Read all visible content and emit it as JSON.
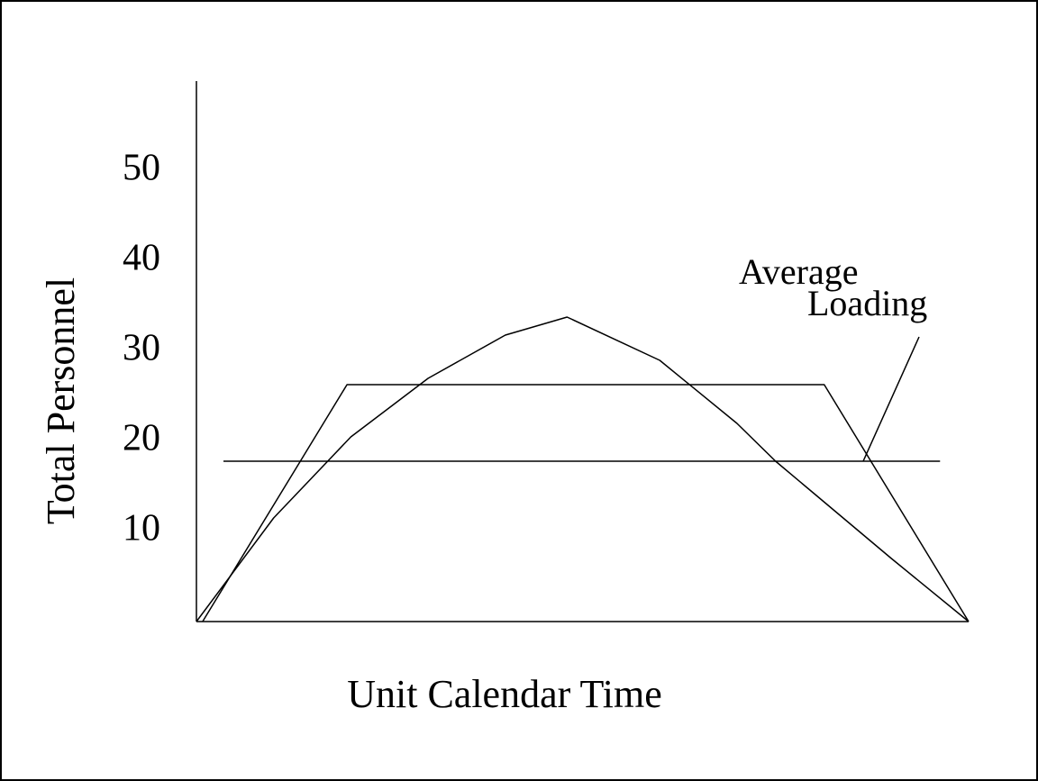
{
  "chart_data": {
    "type": "line",
    "xlabel": "Unit Calendar Time",
    "ylabel": "Total Personnel",
    "annotation": [
      "Average",
      "Loading"
    ],
    "xlim": [
      0,
      100
    ],
    "ylim": [
      0,
      60
    ],
    "yticks": [
      10,
      20,
      30,
      40,
      50
    ],
    "grid": false,
    "series": [
      {
        "color": "#000000",
        "x": [
          0,
          10,
          20,
          30,
          40,
          48,
          60,
          70,
          75,
          80,
          90,
          100
        ],
        "values": [
          0,
          11.5,
          20.5,
          27,
          31.8,
          33.8,
          29,
          22,
          17.8,
          14.2,
          7,
          0
        ]
      },
      {
        "color": "#000000",
        "x": [
          0.8,
          19.5,
          81.3,
          100
        ],
        "values": [
          0,
          26.3,
          26.3,
          0
        ]
      },
      {
        "color": "#000000",
        "x": [
          3.5,
          96.3
        ],
        "values": [
          17.8,
          17.8
        ]
      }
    ]
  }
}
